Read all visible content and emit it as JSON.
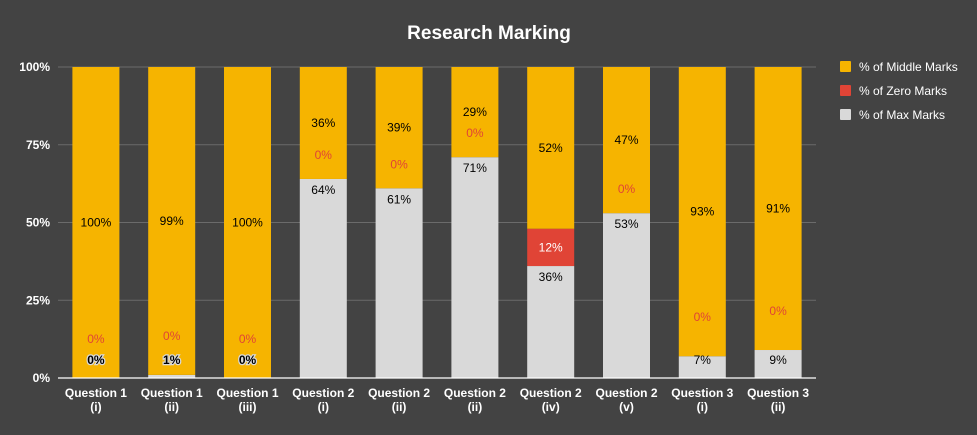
{
  "chart_data": {
    "type": "bar",
    "stacked": true,
    "percent_stacked": true,
    "title": "Research Marking",
    "xlabel": "",
    "ylabel": "",
    "ylim": [
      0,
      100
    ],
    "y_ticks": [
      "0%",
      "25%",
      "50%",
      "75%",
      "100%"
    ],
    "y_tick_values": [
      0,
      25,
      50,
      75,
      100
    ],
    "grid": true,
    "legend_position": "right",
    "categories": [
      [
        "Question 1",
        "(i)"
      ],
      [
        "Question 1",
        "(ii)"
      ],
      [
        "Question 1",
        "(iii)"
      ],
      [
        "Question 2",
        "(i)"
      ],
      [
        "Question 2",
        "(ii)"
      ],
      [
        "Question 2",
        "(ii)"
      ],
      [
        "Question 2",
        "(iv)"
      ],
      [
        "Question 2",
        "(v)"
      ],
      [
        "Question 3",
        "(i)"
      ],
      [
        "Question 3",
        "(ii)"
      ]
    ],
    "series": [
      {
        "name": "% of Max Marks",
        "color": "#d9d9d9",
        "label_color": "#000000",
        "values": [
          0,
          1,
          0,
          64,
          61,
          71,
          36,
          53,
          7,
          9
        ],
        "labels": [
          "0%",
          "1%",
          "0%",
          "64%",
          "61%",
          "71%",
          "36%",
          "53%",
          "7%",
          "9%"
        ]
      },
      {
        "name": "% of Zero Marks",
        "color": "#e04436",
        "label_color": "#e04436",
        "values": [
          0,
          0,
          0,
          0,
          0,
          0,
          12,
          0,
          0,
          0
        ],
        "labels": [
          "0%",
          "0%",
          "0%",
          "0%",
          "0%",
          "0%",
          "12%",
          "0%",
          "0%",
          "0%"
        ]
      },
      {
        "name": "% of Middle Marks",
        "color": "#f6b400",
        "label_color": "#000000",
        "values": [
          100,
          99,
          100,
          36,
          39,
          29,
          52,
          47,
          93,
          91
        ],
        "labels": [
          "100%",
          "99%",
          "100%",
          "36%",
          "39%",
          "29%",
          "52%",
          "47%",
          "93%",
          "91%"
        ]
      }
    ],
    "legend_order": [
      "% of Middle Marks",
      "% of Zero Marks",
      "% of Max Marks"
    ]
  }
}
